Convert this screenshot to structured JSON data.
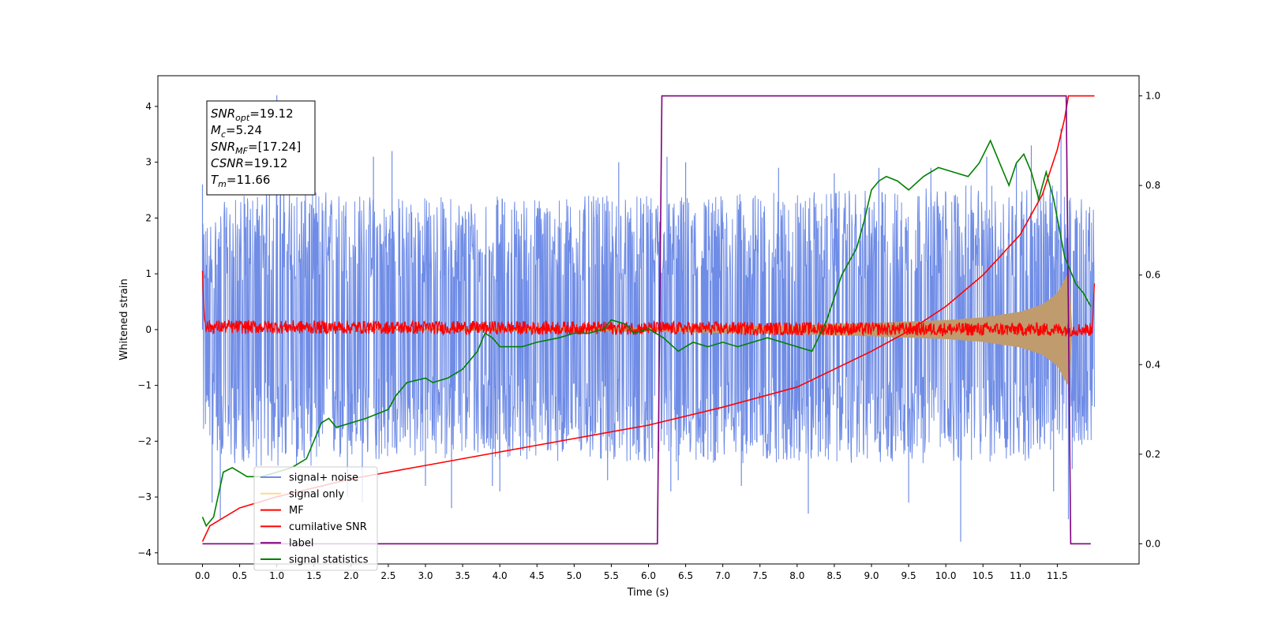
{
  "chart_data": {
    "type": "line",
    "xlabel": "Time (s)",
    "ylabel": "Whitened strain",
    "x_ticks": [
      0.0,
      0.5,
      1.0,
      1.5,
      2.0,
      2.5,
      3.0,
      3.5,
      4.0,
      4.5,
      5.0,
      5.5,
      6.0,
      6.5,
      7.0,
      7.5,
      8.0,
      8.5,
      9.0,
      9.5,
      10.0,
      10.5,
      11.0,
      11.5
    ],
    "y_left_ticks": [
      -4,
      -3,
      -2,
      -1,
      0,
      1,
      2,
      3,
      4
    ],
    "y_right_ticks": [
      0.0,
      0.2,
      0.4,
      0.6,
      0.8,
      1.0
    ],
    "xlim": [
      -0.6,
      12.6
    ],
    "ylim_left": [
      -4.2,
      4.55
    ],
    "ylim_right": [
      -0.045,
      1.045
    ],
    "annotation_box": {
      "lines": [
        {
          "sym": "SNR",
          "sub": "opt",
          "value": "=19.12"
        },
        {
          "sym": "M",
          "sub": "c",
          "value": "=5.24"
        },
        {
          "sym": "SNR",
          "sub": "MF",
          "value": "=[17.24]"
        },
        {
          "sym": "CSNR",
          "sub": "",
          "value": "=19.12"
        },
        {
          "sym": "T",
          "sub": "m",
          "value": "=11.66"
        }
      ]
    },
    "legend_position": "lower-left",
    "series": [
      {
        "name": "signal+ noise",
        "axis": "left",
        "color": "#6f8ce6",
        "kind": "noise",
        "x_range": [
          0.0,
          12.0
        ],
        "envelope_pos": [
          [
            0.0,
            1.9
          ],
          [
            0.3,
            2.3
          ],
          [
            1.0,
            2.6
          ],
          [
            2.5,
            2.4
          ],
          [
            6.0,
            2.4
          ],
          [
            9.0,
            2.5
          ],
          [
            10.5,
            2.6
          ],
          [
            11.5,
            2.6
          ],
          [
            12.0,
            2.2
          ]
        ],
        "envelope_neg": [
          [
            0.0,
            -1.9
          ],
          [
            0.3,
            -2.4
          ],
          [
            1.0,
            -2.5
          ],
          [
            3.0,
            -2.3
          ],
          [
            6.0,
            -2.4
          ],
          [
            9.0,
            -2.4
          ],
          [
            11.0,
            -2.4
          ],
          [
            12.0,
            -2.0
          ]
        ],
        "spikes": [
          [
            0.0,
            2.6
          ],
          [
            0.13,
            -3.1
          ],
          [
            0.24,
            -3.4
          ],
          [
            1.0,
            4.2
          ],
          [
            1.05,
            3.9
          ],
          [
            0.9,
            3.7
          ],
          [
            2.3,
            3.1
          ],
          [
            2.55,
            3.2
          ],
          [
            2.15,
            -3.1
          ],
          [
            1.95,
            -3.0
          ],
          [
            3.35,
            -3.2
          ],
          [
            3.9,
            -2.8
          ],
          [
            4.0,
            -2.9
          ],
          [
            3.0,
            -2.8
          ],
          [
            5.45,
            -2.7
          ],
          [
            5.6,
            3.0
          ],
          [
            6.3,
            -2.9
          ],
          [
            6.4,
            -2.7
          ],
          [
            6.25,
            3.1
          ],
          [
            6.5,
            3.0
          ],
          [
            7.25,
            -2.8
          ],
          [
            7.75,
            2.9
          ],
          [
            8.5,
            2.8
          ],
          [
            8.15,
            -3.3
          ],
          [
            9.1,
            2.9
          ],
          [
            9.5,
            -3.1
          ],
          [
            9.8,
            2.9
          ],
          [
            10.2,
            -3.8
          ],
          [
            10.55,
            3.1
          ],
          [
            11.15,
            3.3
          ],
          [
            11.45,
            -2.9
          ],
          [
            11.55,
            3.6
          ],
          [
            11.65,
            -3.4
          ],
          [
            11.7,
            -2.5
          ],
          [
            10.95,
            3.0
          ]
        ]
      },
      {
        "name": "signal only",
        "axis": "left",
        "color": "#f5c542",
        "kind": "chirp-band",
        "fill_color": "#bf9b6e",
        "amplitude": [
          [
            0.0,
            0.0
          ],
          [
            3.0,
            0.02
          ],
          [
            6.0,
            0.04
          ],
          [
            7.0,
            0.06
          ],
          [
            8.0,
            0.08
          ],
          [
            9.0,
            0.12
          ],
          [
            10.0,
            0.17
          ],
          [
            10.5,
            0.22
          ],
          [
            11.0,
            0.32
          ],
          [
            11.3,
            0.45
          ],
          [
            11.5,
            0.65
          ],
          [
            11.6,
            0.9
          ],
          [
            11.66,
            1.05
          ],
          [
            11.7,
            0.0
          ]
        ]
      },
      {
        "name": "MF",
        "axis": "left",
        "color": "#ff0000",
        "kind": "noise-small",
        "x_range": [
          0.0,
          12.0
        ],
        "points": [
          [
            0.0,
            1.0
          ],
          [
            0.02,
            0.35
          ],
          [
            0.05,
            0.05
          ],
          [
            11.97,
            0.0
          ],
          [
            12.0,
            0.9
          ]
        ],
        "amplitude": 0.12
      },
      {
        "name": "cumilative SNR",
        "axis": "right",
        "color": "#ff0000",
        "points": [
          [
            0.0,
            0.005
          ],
          [
            0.1,
            0.04
          ],
          [
            0.5,
            0.08
          ],
          [
            1.0,
            0.105
          ],
          [
            2.0,
            0.145
          ],
          [
            3.0,
            0.175
          ],
          [
            4.0,
            0.205
          ],
          [
            5.0,
            0.235
          ],
          [
            6.0,
            0.265
          ],
          [
            7.0,
            0.305
          ],
          [
            8.0,
            0.35
          ],
          [
            9.0,
            0.43
          ],
          [
            9.5,
            0.475
          ],
          [
            10.0,
            0.53
          ],
          [
            10.5,
            0.6
          ],
          [
            11.0,
            0.69
          ],
          [
            11.3,
            0.78
          ],
          [
            11.5,
            0.88
          ],
          [
            11.6,
            0.95
          ],
          [
            11.65,
            1.0
          ],
          [
            12.0,
            1.0
          ]
        ]
      },
      {
        "name": "label",
        "axis": "right",
        "color": "#800080",
        "points": [
          [
            0.0,
            0.0
          ],
          [
            6.12,
            0.0
          ],
          [
            6.18,
            1.0
          ],
          [
            11.62,
            1.0
          ],
          [
            11.68,
            0.0
          ],
          [
            11.95,
            0.0
          ]
        ]
      },
      {
        "name": "signal statistics",
        "axis": "right",
        "color": "#008000",
        "points": [
          [
            0.0,
            0.06
          ],
          [
            0.05,
            0.04
          ],
          [
            0.15,
            0.06
          ],
          [
            0.28,
            0.16
          ],
          [
            0.4,
            0.17
          ],
          [
            0.5,
            0.16
          ],
          [
            0.6,
            0.15
          ],
          [
            0.8,
            0.15
          ],
          [
            1.0,
            0.16
          ],
          [
            1.2,
            0.17
          ],
          [
            1.4,
            0.19
          ],
          [
            1.6,
            0.27
          ],
          [
            1.7,
            0.28
          ],
          [
            1.8,
            0.26
          ],
          [
            2.0,
            0.27
          ],
          [
            2.2,
            0.28
          ],
          [
            2.5,
            0.3
          ],
          [
            2.6,
            0.33
          ],
          [
            2.75,
            0.36
          ],
          [
            3.0,
            0.37
          ],
          [
            3.1,
            0.36
          ],
          [
            3.3,
            0.37
          ],
          [
            3.5,
            0.39
          ],
          [
            3.7,
            0.43
          ],
          [
            3.8,
            0.47
          ],
          [
            3.9,
            0.46
          ],
          [
            4.0,
            0.44
          ],
          [
            4.3,
            0.44
          ],
          [
            4.5,
            0.45
          ],
          [
            4.8,
            0.46
          ],
          [
            5.0,
            0.47
          ],
          [
            5.2,
            0.47
          ],
          [
            5.4,
            0.48
          ],
          [
            5.5,
            0.5
          ],
          [
            5.7,
            0.49
          ],
          [
            5.8,
            0.47
          ],
          [
            6.0,
            0.48
          ],
          [
            6.2,
            0.46
          ],
          [
            6.4,
            0.43
          ],
          [
            6.6,
            0.45
          ],
          [
            6.8,
            0.44
          ],
          [
            7.0,
            0.45
          ],
          [
            7.2,
            0.44
          ],
          [
            7.4,
            0.45
          ],
          [
            7.6,
            0.46
          ],
          [
            7.8,
            0.45
          ],
          [
            8.0,
            0.44
          ],
          [
            8.2,
            0.43
          ],
          [
            8.4,
            0.5
          ],
          [
            8.6,
            0.6
          ],
          [
            8.8,
            0.66
          ],
          [
            8.9,
            0.72
          ],
          [
            9.0,
            0.79
          ],
          [
            9.1,
            0.81
          ],
          [
            9.2,
            0.82
          ],
          [
            9.35,
            0.81
          ],
          [
            9.5,
            0.79
          ],
          [
            9.7,
            0.82
          ],
          [
            9.9,
            0.84
          ],
          [
            10.1,
            0.83
          ],
          [
            10.3,
            0.82
          ],
          [
            10.45,
            0.85
          ],
          [
            10.6,
            0.9
          ],
          [
            10.75,
            0.84
          ],
          [
            10.85,
            0.8
          ],
          [
            10.95,
            0.85
          ],
          [
            11.05,
            0.87
          ],
          [
            11.15,
            0.83
          ],
          [
            11.25,
            0.77
          ],
          [
            11.35,
            0.83
          ],
          [
            11.45,
            0.77
          ],
          [
            11.6,
            0.64
          ],
          [
            11.75,
            0.58
          ],
          [
            11.85,
            0.56
          ],
          [
            11.95,
            0.53
          ]
        ]
      }
    ]
  }
}
